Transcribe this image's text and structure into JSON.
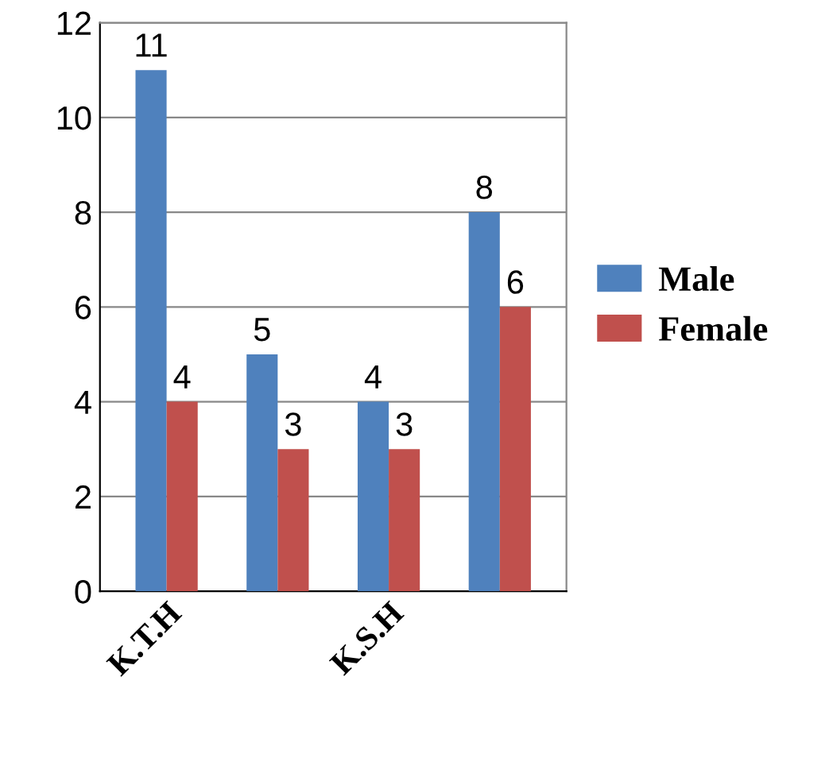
{
  "chart_data": {
    "type": "bar",
    "categories": [
      "K.T.H",
      null,
      "K.S.H",
      null
    ],
    "series": [
      {
        "name": "Male",
        "color": "#4f81bd",
        "values": [
          11,
          5,
          4,
          8
        ]
      },
      {
        "name": "Female",
        "color": "#c0504d",
        "values": [
          4,
          3,
          3,
          6
        ]
      }
    ],
    "ylim": [
      0,
      12
    ],
    "yticks": [
      0,
      2,
      4,
      6,
      8,
      10,
      12
    ],
    "grid": "y",
    "legend": "right",
    "data_labels": true
  }
}
